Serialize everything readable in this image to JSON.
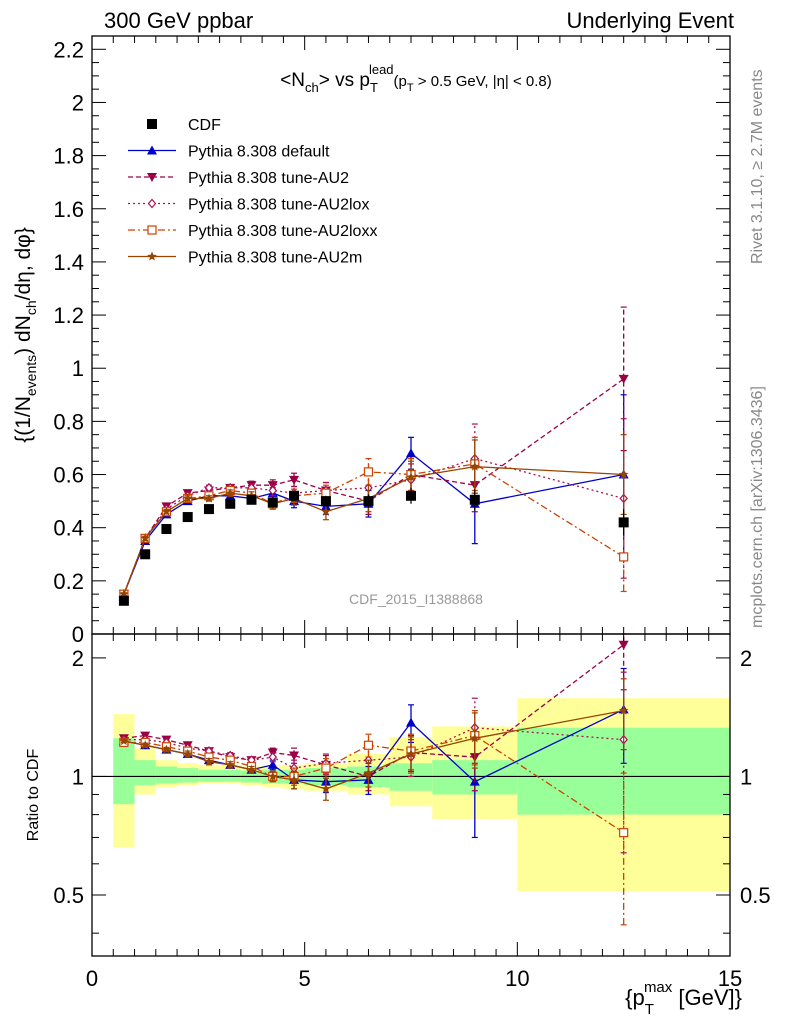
{
  "header": {
    "left": "300 GeV ppbar",
    "right": "Underlying Event"
  },
  "side_labels": {
    "rivet": "Rivet 3.1.10, ≥ 2.7M events",
    "mcplots": "mcplots.cern.ch [arXiv:1306.3436]"
  },
  "watermark": "CDF_2015_I1388868",
  "chart_data": [
    {
      "type": "scatter",
      "title_main": "<N",
      "title_sub": "ch",
      "title_mid": "> vs p",
      "title_sup": "lead",
      "title_sub2": "T",
      "title_cond": "(p",
      "title_cond_sub": "T",
      "title_cond_rest": " > 0.5 GeV, |η| < 0.8)",
      "ylabel": "{(1/N",
      "ylabel_sub1": "events",
      "ylabel_mid": ") dN",
      "ylabel_sub2": "ch",
      "ylabel_end": "/dη, dφ}",
      "xlim": [
        0,
        15
      ],
      "ylim": [
        0,
        2.25
      ],
      "yticks": [
        0,
        0.2,
        0.4,
        0.6,
        0.8,
        1,
        1.2,
        1.4,
        1.6,
        1.8,
        2,
        2.2
      ],
      "ytick_labels": [
        "0",
        "0.2",
        "0.4",
        "0.6",
        "0.8",
        "1",
        "1.2",
        "1.4",
        "1.6",
        "1.8",
        "2",
        "2.2"
      ],
      "legend_position": "top-left",
      "x": [
        0.75,
        1.25,
        1.75,
        2.25,
        2.75,
        3.25,
        3.75,
        4.25,
        4.75,
        5.5,
        6.5,
        7.5,
        9,
        12.5
      ],
      "series": [
        {
          "name": "CDF",
          "color": "#000000",
          "marker": "square",
          "line": "none",
          "values": [
            0.125,
            0.3,
            0.395,
            0.44,
            0.47,
            0.49,
            0.505,
            0.495,
            0.52,
            0.5,
            0.5,
            0.52,
            0.505,
            0.42
          ],
          "err": [
            0.005,
            0.007,
            0.008,
            0.008,
            0.009,
            0.01,
            0.01,
            0.012,
            0.015,
            0.02,
            0.025,
            0.03,
            0.04,
            0.05
          ]
        },
        {
          "name": "Pythia 8.308 default",
          "color": "#0000cc",
          "marker": "triangle-up",
          "line": "solid",
          "values": [
            0.15,
            0.35,
            0.45,
            0.5,
            0.52,
            0.52,
            0.51,
            0.53,
            0.5,
            0.48,
            0.49,
            0.68,
            0.49,
            0.6
          ],
          "err": [
            0.005,
            0.008,
            0.008,
            0.01,
            0.01,
            0.012,
            0.015,
            0.02,
            0.025,
            0.03,
            0.05,
            0.06,
            0.15,
            0.3
          ]
        },
        {
          "name": "Pythia 8.308 tune-AU2",
          "color": "#990044",
          "marker": "triangle-down",
          "line": "dashed",
          "values": [
            0.15,
            0.36,
            0.48,
            0.53,
            0.54,
            0.55,
            0.56,
            0.56,
            0.58,
            0.54,
            0.5,
            0.6,
            0.56,
            0.96
          ],
          "err": [
            0.005,
            0.008,
            0.008,
            0.01,
            0.01,
            0.012,
            0.015,
            0.02,
            0.025,
            0.03,
            0.05,
            0.06,
            0.1,
            0.27
          ]
        },
        {
          "name": "Pythia 8.308 tune-AU2lox",
          "color": "#aa1155",
          "marker": "diamond",
          "line": "dotted",
          "values": [
            0.15,
            0.36,
            0.47,
            0.52,
            0.55,
            0.55,
            0.55,
            0.54,
            0.53,
            0.54,
            0.55,
            0.58,
            0.66,
            0.51
          ],
          "err": [
            0.005,
            0.008,
            0.008,
            0.01,
            0.01,
            0.012,
            0.015,
            0.02,
            0.025,
            0.03,
            0.05,
            0.06,
            0.13,
            0.3
          ]
        },
        {
          "name": "Pythia 8.308 tune-AU2loxx",
          "color": "#cc4400",
          "marker": "square-open",
          "line": "dashdot",
          "values": [
            0.15,
            0.36,
            0.46,
            0.51,
            0.52,
            0.54,
            0.53,
            0.49,
            0.52,
            0.53,
            0.61,
            0.6,
            0.64,
            0.29
          ],
          "err": [
            0.005,
            0.008,
            0.008,
            0.01,
            0.01,
            0.012,
            0.015,
            0.02,
            0.025,
            0.03,
            0.05,
            0.06,
            0.1,
            0.13
          ]
        },
        {
          "name": "Pythia 8.308 tune-AU2m",
          "color": "#994400",
          "marker": "star",
          "line": "solid",
          "values": [
            0.15,
            0.36,
            0.46,
            0.51,
            0.51,
            0.53,
            0.52,
            0.49,
            0.51,
            0.46,
            0.51,
            0.59,
            0.63,
            0.6
          ],
          "err": [
            0.005,
            0.008,
            0.008,
            0.01,
            0.01,
            0.012,
            0.015,
            0.02,
            0.025,
            0.03,
            0.05,
            0.06,
            0.1,
            0.15
          ]
        }
      ]
    },
    {
      "type": "scatter",
      "ylabel": "Ratio to CDF",
      "xlabel": "{p",
      "xlabel_sub": "T",
      "xlabel_sup": "max",
      "xlabel_end": " [GeV]}",
      "xlim": [
        0,
        15
      ],
      "ylim": [
        0.35,
        2.3
      ],
      "xticks": [
        0,
        5,
        10,
        15
      ],
      "xtick_labels": [
        "0",
        "5",
        "10",
        "15"
      ],
      "yticks": [
        0.5,
        1,
        2
      ],
      "ytick_labels": [
        "0.5",
        "1",
        "2"
      ],
      "reference_line": 1,
      "bands": {
        "bins": [
          [
            0.5,
            1
          ],
          [
            1,
            1.5
          ],
          [
            1.5,
            2
          ],
          [
            2,
            2.5
          ],
          [
            2.5,
            3
          ],
          [
            3,
            3.5
          ],
          [
            3.5,
            4
          ],
          [
            4,
            4.5
          ],
          [
            4.5,
            5
          ],
          [
            5,
            6
          ],
          [
            6,
            7
          ],
          [
            7,
            8
          ],
          [
            8,
            10
          ],
          [
            10,
            15
          ]
        ],
        "green": [
          [
            0.85,
            1.25
          ],
          [
            0.95,
            1.1
          ],
          [
            0.96,
            1.06
          ],
          [
            0.965,
            1.05
          ],
          [
            0.97,
            1.04
          ],
          [
            0.97,
            1.04
          ],
          [
            0.965,
            1.035
          ],
          [
            0.96,
            1.04
          ],
          [
            0.96,
            1.04
          ],
          [
            0.95,
            1.05
          ],
          [
            0.94,
            1.06
          ],
          [
            0.92,
            1.08
          ],
          [
            0.9,
            1.1
          ],
          [
            0.8,
            1.33
          ]
        ],
        "yellow": [
          [
            0.66,
            1.44
          ],
          [
            0.9,
            1.18
          ],
          [
            0.94,
            1.1
          ],
          [
            0.95,
            1.08
          ],
          [
            0.96,
            1.07
          ],
          [
            0.96,
            1.07
          ],
          [
            0.95,
            1.06
          ],
          [
            0.94,
            1.07
          ],
          [
            0.93,
            1.07
          ],
          [
            0.92,
            1.08
          ],
          [
            0.9,
            1.14
          ],
          [
            0.84,
            1.26
          ],
          [
            0.78,
            1.34
          ],
          [
            0.51,
            1.58
          ]
        ],
        "green_color": "#99ff99",
        "yellow_color": "#ffff99"
      },
      "series": [
        {
          "name": "Pythia 8.308 default",
          "values": [
            1.23,
            1.2,
            1.17,
            1.14,
            1.1,
            1.07,
            1.04,
            1.07,
            0.98,
            0.97,
            0.98,
            1.37,
            0.97,
            1.48
          ],
          "err": [
            0.01,
            0.015,
            0.015,
            0.02,
            0.02,
            0.02,
            0.02,
            0.03,
            0.05,
            0.06,
            0.08,
            0.15,
            0.27,
            0.4
          ]
        },
        {
          "name": "Pythia 8.308 tune-AU2",
          "values": [
            1.25,
            1.27,
            1.24,
            1.2,
            1.16,
            1.12,
            1.1,
            1.15,
            1.13,
            1.07,
            1.0,
            1.15,
            1.12,
            2.16
          ],
          "err": [
            0.01,
            0.015,
            0.015,
            0.02,
            0.02,
            0.02,
            0.02,
            0.03,
            0.05,
            0.06,
            0.08,
            0.12,
            0.2,
            0.5
          ]
        },
        {
          "name": "Pythia 8.308 tune-AU2lox",
          "values": [
            1.24,
            1.24,
            1.22,
            1.18,
            1.16,
            1.13,
            1.1,
            1.12,
            1.05,
            1.08,
            1.1,
            1.12,
            1.33,
            1.24
          ],
          "err": [
            0.01,
            0.015,
            0.015,
            0.02,
            0.02,
            0.02,
            0.02,
            0.03,
            0.05,
            0.06,
            0.08,
            0.12,
            0.25,
            0.6
          ]
        },
        {
          "name": "Pythia 8.308 tune-AU2loxx",
          "values": [
            1.22,
            1.22,
            1.19,
            1.16,
            1.12,
            1.1,
            1.06,
            1.0,
            1.0,
            1.05,
            1.2,
            1.16,
            1.27,
            0.72
          ],
          "err": [
            0.01,
            0.015,
            0.015,
            0.02,
            0.02,
            0.02,
            0.02,
            0.03,
            0.05,
            0.06,
            0.08,
            0.12,
            0.2,
            0.3
          ]
        },
        {
          "name": "Pythia 8.308 tune-AU2m",
          "values": [
            1.23,
            1.2,
            1.17,
            1.14,
            1.09,
            1.07,
            1.04,
            1.0,
            0.98,
            0.93,
            1.02,
            1.14,
            1.25,
            1.47
          ],
          "err": [
            0.01,
            0.015,
            0.015,
            0.02,
            0.02,
            0.02,
            0.02,
            0.03,
            0.05,
            0.06,
            0.08,
            0.12,
            0.2,
            0.3
          ]
        }
      ]
    }
  ]
}
